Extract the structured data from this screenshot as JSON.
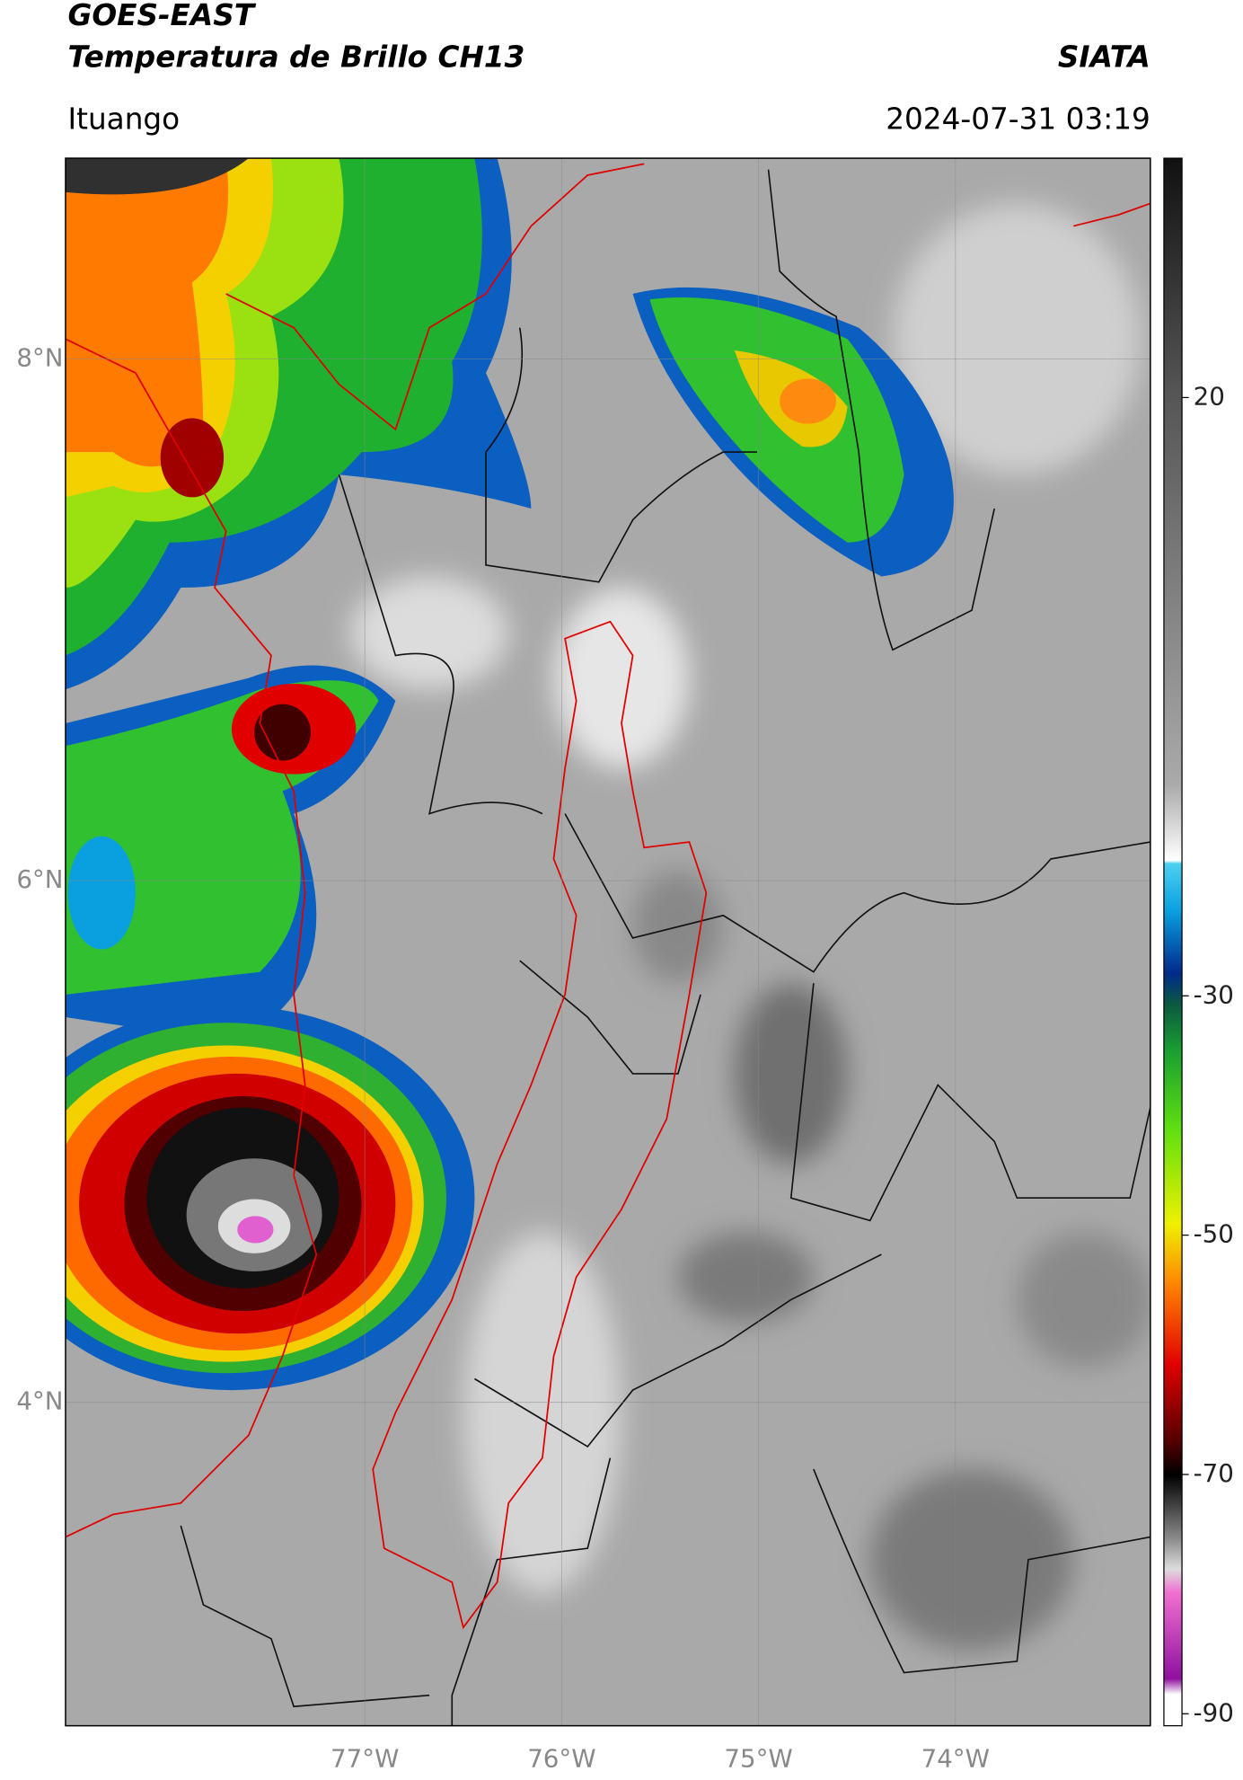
{
  "header": {
    "title": "GOES-EAST",
    "subtitle": "Temperatura de Brillo CH13",
    "agency": "SIATA",
    "location": "Ituango",
    "timestamp": "2024-07-31 03:19"
  },
  "map": {
    "xlim": [
      -78.52,
      -73.01
    ],
    "ylim": [
      2.76,
      8.77
    ],
    "xticks": [
      {
        "value": -77,
        "label": "77°W"
      },
      {
        "value": -76,
        "label": "76°W"
      },
      {
        "value": -75,
        "label": "75°W"
      },
      {
        "value": -74,
        "label": "74°W"
      }
    ],
    "yticks": [
      {
        "value": 4,
        "label": "4°N"
      },
      {
        "value": 6,
        "label": "6°N"
      },
      {
        "value": 8,
        "label": "8°N"
      }
    ],
    "grid": true
  },
  "colorbar": {
    "clim": [
      -91,
      40
    ],
    "ticks": [
      -90,
      -70,
      -50,
      -30,
      20
    ]
  }
}
